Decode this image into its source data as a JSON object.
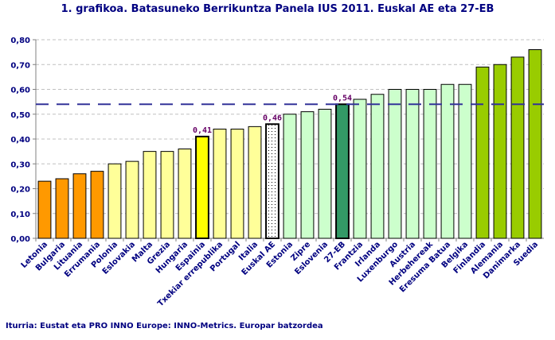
{
  "chart_data": {
    "type": "bar",
    "title": "1. grafikoa. Batasuneko Berrikuntza Panela IUS 2011. Euskal AE eta 27-EB",
    "categories": [
      "Letonia",
      "Bulgaria",
      "Lituania",
      "Errumania",
      "Polonia",
      "Eslovakia",
      "Malta",
      "Grezia",
      "Hungaria",
      "Espainia",
      "Txekiar errepublika",
      "Portugal",
      "Italia",
      "Euskal AE",
      "Estonia",
      "Zipre",
      "Eslovenia",
      "27-EB",
      "Frantzia",
      "Irlanda",
      "Luxenburgo",
      "Austria",
      "Herbehereak",
      "Eresuma Batua",
      "Belgika",
      "Finlandia",
      "Alemania",
      "Danimarka",
      "Suedia"
    ],
    "values": [
      0.23,
      0.24,
      0.26,
      0.27,
      0.3,
      0.31,
      0.35,
      0.35,
      0.36,
      0.41,
      0.44,
      0.44,
      0.45,
      0.46,
      0.5,
      0.51,
      0.52,
      0.54,
      0.56,
      0.58,
      0.6,
      0.6,
      0.6,
      0.62,
      0.62,
      0.69,
      0.7,
      0.73,
      0.76
    ],
    "data_labels": {
      "Espainia": "0,41",
      "Euskal AE": "0,46",
      "27-EB": "0,54"
    },
    "colors": [
      "#FF9900",
      "#FF9900",
      "#FF9900",
      "#FF9900",
      "#FFFF99",
      "#FFFF99",
      "#FFFF99",
      "#FFFF99",
      "#FFFF99",
      "#FFFF00",
      "#FFFF99",
      "#FFFF99",
      "#FFFF99",
      "dotted",
      "#CCFFCC",
      "#CCFFCC",
      "#CCFFCC",
      "#339966",
      "#CCFFCC",
      "#CCFFCC",
      "#CCFFCC",
      "#CCFFCC",
      "#CCFFCC",
      "#CCFFCC",
      "#CCFFCC",
      "#99CC00",
      "#99CC00",
      "#99CC00",
      "#99CC00"
    ],
    "reference_line": {
      "value": 0.54,
      "color": "#333399",
      "style": "dashed"
    },
    "ylim": [
      0,
      0.8
    ],
    "yticks": [
      "0,00",
      "0,10",
      "0,20",
      "0,30",
      "0,40",
      "0,50",
      "0,60",
      "0,70",
      "0,80"
    ],
    "grid": true,
    "xlabel": "",
    "ylabel": ""
  },
  "source": "Iturria: Eustat eta PRO INNO Europe: INNO-Metrics. Europar batzordea"
}
